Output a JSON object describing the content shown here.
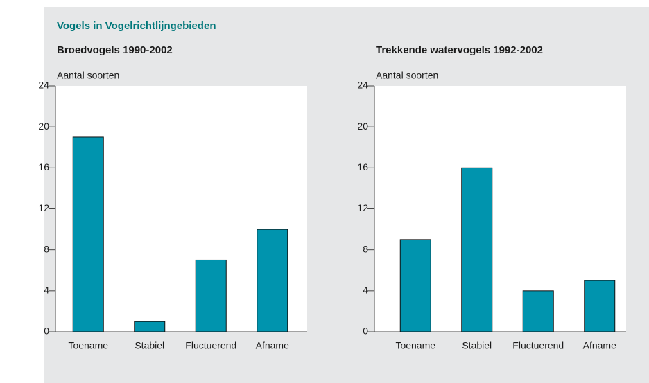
{
  "title": "Vogels in Vogelrichtlijngebieden",
  "chart_data": [
    {
      "type": "bar",
      "title": "Broedvogels 1990-2002",
      "ylabel": "Aantal soorten",
      "categories": [
        "Toename",
        "Stabiel",
        "Fluctuerend",
        "Afname"
      ],
      "values": [
        19,
        1,
        7,
        10
      ],
      "color": "#0094ae",
      "ylim": [
        0,
        24
      ],
      "yticks": [
        0,
        4,
        8,
        12,
        16,
        20,
        24
      ]
    },
    {
      "type": "bar",
      "title": "Trekkende watervogels 1992-2002",
      "ylabel": "Aantal soorten",
      "categories": [
        "Toename",
        "Stabiel",
        "Fluctuerend",
        "Afname"
      ],
      "values": [
        9,
        16,
        4,
        5
      ],
      "color": "#0094ae",
      "ylim": [
        0,
        24
      ],
      "yticks": [
        0,
        4,
        8,
        12,
        16,
        20,
        24
      ]
    }
  ]
}
